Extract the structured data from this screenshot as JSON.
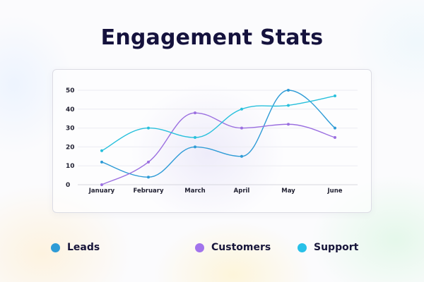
{
  "title": "Engagement Stats",
  "chart_data": {
    "type": "line",
    "title": "Engagement Stats",
    "categories": [
      "January",
      "February",
      "March",
      "April",
      "May",
      "June"
    ],
    "series": [
      {
        "name": "Leads",
        "color": "#2e9bd6",
        "values": [
          12,
          4,
          20,
          15,
          50,
          30
        ]
      },
      {
        "name": "Customers",
        "color": "#9b6fe0",
        "values": [
          0,
          12,
          38,
          30,
          32,
          25
        ]
      },
      {
        "name": "Support",
        "color": "#28c0dc",
        "values": [
          18,
          30,
          25,
          40,
          42,
          47
        ]
      }
    ],
    "yticks": [
      0,
      10,
      20,
      30,
      40,
      50
    ],
    "ylim": [
      0,
      50
    ],
    "xlabel": "",
    "ylabel": "",
    "grid": true,
    "legend_position": "bottom"
  },
  "legend": {
    "items": [
      {
        "label": "Leads",
        "color": "#2e9bd6"
      },
      {
        "label": "Customers",
        "color": "#a274ec"
      },
      {
        "label": "Support",
        "color": "#28c0e8"
      }
    ]
  }
}
